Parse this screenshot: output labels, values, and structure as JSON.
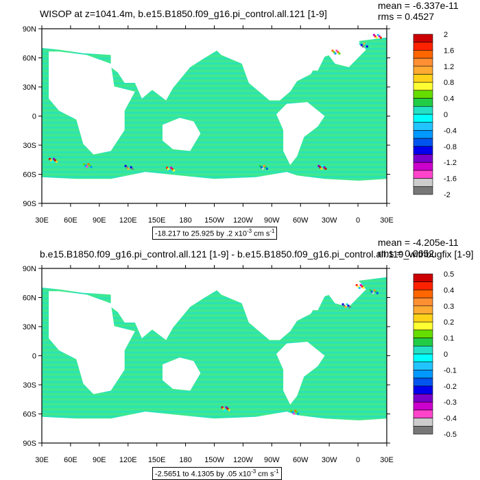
{
  "panels": [
    {
      "title": "WISOP at z=1041.4m, b.e15.B1850.f09_g16.pi_control.all.121 [1-9]",
      "mean": "mean = -6.337e-11",
      "rms": "rms = 0.4527",
      "range_text": "-18.217 to 25.925 by .2 x10",
      "range_units": " cm s",
      "colorbar_labels": [
        "2",
        "1.6",
        "1.2",
        "0.8",
        "0.4",
        "0",
        "-0.4",
        "-0.8",
        "-1.2",
        "-1.6",
        "-2"
      ]
    },
    {
      "title": "b.e15.B1850.f09_g16.pi_control.all.121 [1-9] - b.e15.B1850.f09_g16.pi_control.all.119_withbugfix [1-9]",
      "mean": "mean = -4.205e-11",
      "rms": "rms = 0.0652",
      "range_text": "-2.5651 to 4.1305 by .05 x10",
      "range_units": " cm s",
      "colorbar_labels": [
        "0.5",
        "0.4",
        "0.3",
        "0.2",
        "0.1",
        "0",
        "-0.1",
        "-0.2",
        "-0.3",
        "-0.4",
        "-0.5"
      ]
    }
  ],
  "axes": {
    "lat_labels": [
      "90N",
      "60N",
      "30N",
      "0",
      "30S",
      "60S",
      "90S"
    ],
    "lon_labels": [
      "30E",
      "60E",
      "90E",
      "120E",
      "150E",
      "180",
      "150W",
      "120W",
      "90W",
      "60W",
      "30W",
      "0",
      "30E"
    ]
  },
  "colors": {
    "ocean": "#3fe88f",
    "ocean_alt": "#24e0c4",
    "land": "#ffffff",
    "colorbar": [
      "#cc0000",
      "#ff2200",
      "#ff6600",
      "#ff8f33",
      "#ffaa33",
      "#ffd21a",
      "#ffff33",
      "#66dd00",
      "#22cc44",
      "#24e0c4",
      "#00ffff",
      "#22c4ff",
      "#0099ff",
      "#0055ee",
      "#0000ee",
      "#7a00cc",
      "#cc00cc",
      "#ff44cc",
      "#cccccc",
      "#777777"
    ]
  }
}
